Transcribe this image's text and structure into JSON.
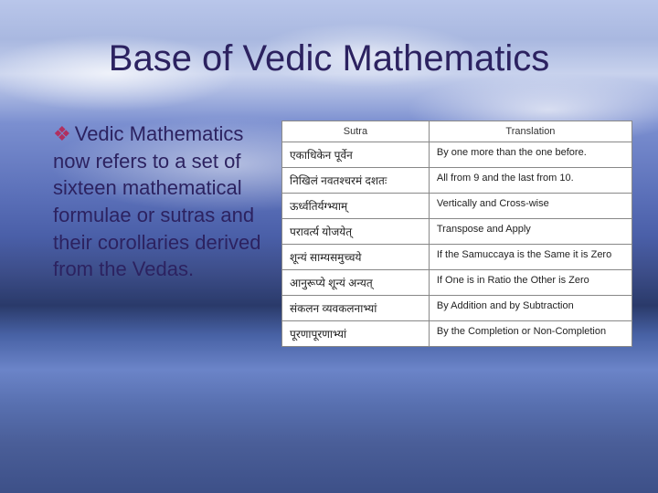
{
  "title": "Base of Vedic Mathematics",
  "bullet": {
    "marker": "❖",
    "text": "Vedic Mathematics now refers to a set of sixteen mathematical formulae or sutras and their corollaries derived from the Vedas."
  },
  "table": {
    "headers": {
      "sutra": "Sutra",
      "translation": "Translation"
    },
    "rows": [
      {
        "sutra": "एकाधिकेन पूर्वेन",
        "translation": "By one more than the one before."
      },
      {
        "sutra": "निखिलं नवतश्चरमं दशतः",
        "translation": "All from 9 and the last from 10."
      },
      {
        "sutra": "ऊर्ध्वतिर्यग्भ्याम्",
        "translation": "Vertically and Cross-wise"
      },
      {
        "sutra": "परावर्त्य योजयेत्",
        "translation": "Transpose and Apply"
      },
      {
        "sutra": "शून्यं साम्यसमुच्चये",
        "translation": "If the Samuccaya is the Same it is Zero"
      },
      {
        "sutra": "आनुरूप्ये शून्यं अन्यत्",
        "translation": "If One is in Ratio the Other is Zero"
      },
      {
        "sutra": "संकलन व्यवकलनाभ्यां",
        "translation": "By Addition and by Subtraction"
      },
      {
        "sutra": "पूरणापूरणाभ्यां",
        "translation": "By the Completion or Non-Completion"
      }
    ]
  },
  "colors": {
    "title_color": "#2c2260",
    "bullet_marker_color": "#b03060",
    "table_bg": "#ffffff",
    "border_color": "#888888"
  }
}
